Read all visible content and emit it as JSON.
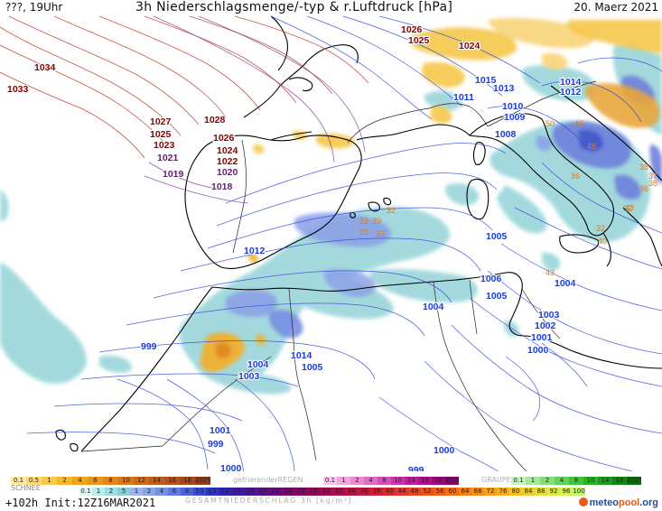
{
  "header": {
    "left": "???, 19Uhr",
    "title": "3h Niederschlagsmenge/-typ & r.Luftdruck [hPa]",
    "date": "20. Maerz 2021"
  },
  "isobar_labels": [
    {
      "text": "1034",
      "color": "#8b0000"
    },
    {
      "text": "1033",
      "color": "#8b0000"
    },
    {
      "text": "1026",
      "color": "#8b0000"
    },
    {
      "text": "1025",
      "color": "#8b0000"
    },
    {
      "text": "1024",
      "color": "#8b0000"
    },
    {
      "text": "1027",
      "color": "#8b0000"
    },
    {
      "text": "1028",
      "color": "#8b0000"
    },
    {
      "text": "1025",
      "color": "#8b0000"
    },
    {
      "text": "1026",
      "color": "#8b0000"
    },
    {
      "text": "1023",
      "color": "#8b0000"
    },
    {
      "text": "1024",
      "color": "#8b0000"
    },
    {
      "text": "1021",
      "color": "#6a1a7a"
    },
    {
      "text": "1022",
      "color": "#8b0000"
    },
    {
      "text": "1019",
      "color": "#6a1a7a"
    },
    {
      "text": "1020",
      "color": "#6a1a7a"
    },
    {
      "text": "1018",
      "color": "#6a1a7a"
    },
    {
      "text": "1015",
      "color": "#1a3cd6"
    },
    {
      "text": "1013",
      "color": "#1a3cd6"
    },
    {
      "text": "1014",
      "color": "#1a3cd6"
    },
    {
      "text": "1012",
      "color": "#1a3cd6"
    },
    {
      "text": "1011",
      "color": "#1a3cd6"
    },
    {
      "text": "1010",
      "color": "#1a3cd6"
    },
    {
      "text": "1009",
      "color": "#1a3cd6"
    },
    {
      "text": "1008",
      "color": "#1a3cd6"
    },
    {
      "text": "1012",
      "color": "#1a3cd6"
    },
    {
      "text": "1005",
      "color": "#1a3cd6"
    },
    {
      "text": "1004",
      "color": "#1a3cd6"
    },
    {
      "text": "1006",
      "color": "#1a3cd6"
    },
    {
      "text": "1005",
      "color": "#1a3cd6"
    },
    {
      "text": "1004",
      "color": "#1a3cd6"
    },
    {
      "text": "1003",
      "color": "#1a3cd6"
    },
    {
      "text": "1002",
      "color": "#1a3cd6"
    },
    {
      "text": "1001",
      "color": "#1a3cd6"
    },
    {
      "text": "1000",
      "color": "#1a3cd6"
    },
    {
      "text": "999",
      "color": "#1a3cd6"
    },
    {
      "text": "1014",
      "color": "#1a3cd6"
    },
    {
      "text": "1005",
      "color": "#1a3cd6"
    },
    {
      "text": "1004",
      "color": "#1a3cd6"
    },
    {
      "text": "1003",
      "color": "#1a3cd6"
    },
    {
      "text": "1001",
      "color": "#1a3cd6"
    },
    {
      "text": "999",
      "color": "#1a3cd6"
    },
    {
      "text": "1000",
      "color": "#1a3cd6"
    },
    {
      "text": "999",
      "color": "#1a3cd6"
    },
    {
      "text": "1000",
      "color": "#1a3cd6"
    },
    {
      "text": "1002",
      "color": "#1a3cd6"
    }
  ],
  "precip_labels": [
    {
      "text": "50",
      "color": "#e07a20"
    },
    {
      "text": "46",
      "color": "#e07a20"
    },
    {
      "text": "48",
      "color": "#e07a20"
    },
    {
      "text": "36",
      "color": "#e07a20"
    },
    {
      "text": "38",
      "color": "#e07a20"
    },
    {
      "text": "37",
      "color": "#e07a20"
    },
    {
      "text": "38",
      "color": "#e07a20"
    },
    {
      "text": "32",
      "color": "#e07a20"
    },
    {
      "text": "32",
      "color": "#e07a20"
    },
    {
      "text": "43",
      "color": "#e07a20"
    },
    {
      "text": "40",
      "color": "#e07a20"
    },
    {
      "text": "32",
      "color": "#e07a20"
    },
    {
      "text": "32",
      "color": "#e07a20"
    },
    {
      "text": "39",
      "color": "#e07a20"
    },
    {
      "text": "33",
      "color": "#e07a20"
    },
    {
      "text": "32",
      "color": "#e07a20"
    },
    {
      "text": "43",
      "color": "#e07a20"
    },
    {
      "text": "36",
      "color": "#e07a20"
    }
  ],
  "legend": {
    "snow": {
      "label": "SCHNEE",
      "values": [
        "0.1",
        "0.5",
        "1",
        "2",
        "4",
        "6",
        "8",
        "10",
        "12",
        "14",
        "16",
        "18",
        "2025+"
      ],
      "colors": [
        "#fde9a6",
        "#fbd97a",
        "#f8c94a",
        "#f5b82c",
        "#efa51a",
        "#e8951a",
        "#e0861c",
        "#d6771e",
        "#c96a1e",
        "#bd5e1f",
        "#b0531f",
        "#a44a20",
        "#8e3f20"
      ]
    },
    "freezing_rain": {
      "label": "gefrierenderREGEN",
      "values": [
        "0.1",
        "1",
        "2",
        "4",
        "8",
        "10",
        "14",
        "16",
        "18",
        "2025+"
      ],
      "colors": [
        "#f7c6e8",
        "#f0a8dc",
        "#e88bd0",
        "#df6dc4",
        "#d54fb8",
        "#c935ab",
        "#bb209c",
        "#ab138d",
        "#99097d",
        "#84056c"
      ]
    },
    "graupel": {
      "label": "GRAUPEL",
      "values": [
        "0.1",
        "1",
        "2",
        "4",
        "8",
        "10",
        "14",
        "16",
        "2025+"
      ],
      "colors": [
        "#c8f0c0",
        "#a8e6a0",
        "#86db7e",
        "#63cf5d",
        "#41c23d",
        "#2ab02a",
        "#1d9a1e",
        "#158415",
        "#0e6e0e"
      ]
    },
    "total": {
      "label": "GESAMTNIEDERSCHLAG 3h [kg/m²]",
      "values": [
        "0.1",
        "1",
        "2",
        "5",
        "1",
        "2",
        "4",
        "6",
        "8",
        "10",
        "12",
        "14",
        "16",
        "18",
        "20",
        "22",
        "24",
        "26",
        "28",
        "30",
        "32",
        "34",
        "36",
        "38",
        "40",
        "44",
        "48",
        "52",
        "56",
        "60",
        "64",
        "68",
        "72",
        "76",
        "80",
        "84",
        "88",
        "92",
        "96",
        "100"
      ],
      "colors": [
        "#dff5f5",
        "#bdebeb",
        "#9fdedf",
        "#87d0d3",
        "#9fb6ea",
        "#8aa4e6",
        "#7590e1",
        "#6179dc",
        "#4d62d6",
        "#3a4bd0",
        "#2a35c4",
        "#2d24b3",
        "#3c1aa3",
        "#4a1593",
        "#581086",
        "#650c79",
        "#730a6d",
        "#800962",
        "#8d0a58",
        "#9a0c4f",
        "#a7104a",
        "#b41445",
        "#c01a40",
        "#cc2038",
        "#d62a30",
        "#df3629",
        "#e64322",
        "#ec521d",
        "#f16119",
        "#f47016",
        "#f78015",
        "#f99016",
        "#f9a01a",
        "#f8b01f",
        "#f5c026",
        "#efcf2f",
        "#e7dc3a",
        "#dde847",
        "#d1f156",
        "#c4f768"
      ]
    }
  },
  "footer": {
    "run": "+102h  Init:12Z16MAR2021",
    "brand_meteo": "meteo",
    "brand_pool": "pool",
    "brand_org": ".org"
  }
}
